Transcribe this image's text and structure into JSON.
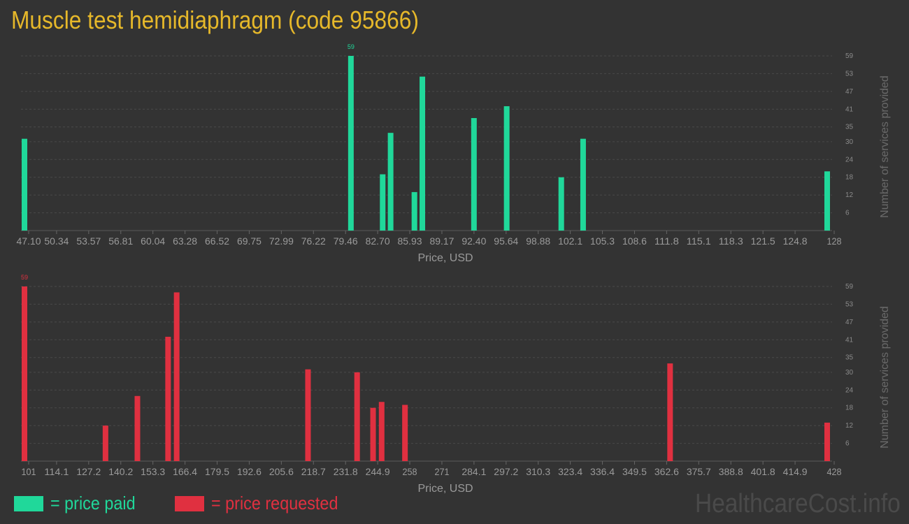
{
  "page": {
    "title": "Muscle test hemidiaphragm (code 95866)",
    "watermark": "HealthcareCost.info"
  },
  "legend": {
    "paid_label": "= price paid",
    "requested_label": "= price requested",
    "paid_color": "#20d89a",
    "requested_color": "#e03040"
  },
  "chart_data": [
    {
      "type": "bar",
      "color": "#20d89a",
      "xlabel": "Price, USD",
      "ylabel": "Number of services provided",
      "xlim": [
        47.1,
        128
      ],
      "ylim": [
        0,
        59
      ],
      "xticks": [
        "47.10",
        "50.34",
        "53.57",
        "56.81",
        "60.04",
        "63.28",
        "66.52",
        "69.75",
        "72.99",
        "76.22",
        "79.46",
        "82.70",
        "85.93",
        "89.17",
        "92.40",
        "95.64",
        "98.88",
        "102.1",
        "105.3",
        "108.6",
        "111.8",
        "115.1",
        "118.3",
        "121.5",
        "124.8",
        "128"
      ],
      "yticks": [
        "6",
        "12",
        "18",
        "24",
        "30",
        "35",
        "41",
        "47",
        "53",
        "59"
      ],
      "x": [
        47.1,
        80.0,
        83.2,
        84.0,
        86.4,
        87.2,
        92.4,
        95.7,
        101.2,
        103.4,
        128
      ],
      "values": [
        31,
        59,
        19,
        33,
        13,
        52,
        38,
        42,
        18,
        31,
        20
      ],
      "max_label": "59",
      "grid": true
    },
    {
      "type": "bar",
      "color": "#e03040",
      "xlabel": "Price, USD",
      "ylabel": "Number of services provided",
      "xlim": [
        101,
        428
      ],
      "ylim": [
        0,
        59
      ],
      "xticks": [
        "101",
        "114.1",
        "127.2",
        "140.2",
        "153.3",
        "166.4",
        "179.5",
        "192.6",
        "205.6",
        "218.7",
        "231.8",
        "244.9",
        "258",
        "271",
        "284.1",
        "297.2",
        "310.3",
        "323.4",
        "336.4",
        "349.5",
        "362.6",
        "375.7",
        "388.8",
        "401.8",
        "414.9",
        "428"
      ],
      "yticks": [
        "6",
        "12",
        "18",
        "24",
        "30",
        "35",
        "41",
        "47",
        "53",
        "59"
      ],
      "x": [
        101,
        134.0,
        147.0,
        159.5,
        163.0,
        216.5,
        236.5,
        243.0,
        246.5,
        256.0,
        364.0,
        428
      ],
      "values": [
        59,
        12,
        22,
        42,
        57,
        31,
        30,
        18,
        20,
        19,
        33,
        13
      ],
      "max_label": "59",
      "grid": true
    }
  ]
}
